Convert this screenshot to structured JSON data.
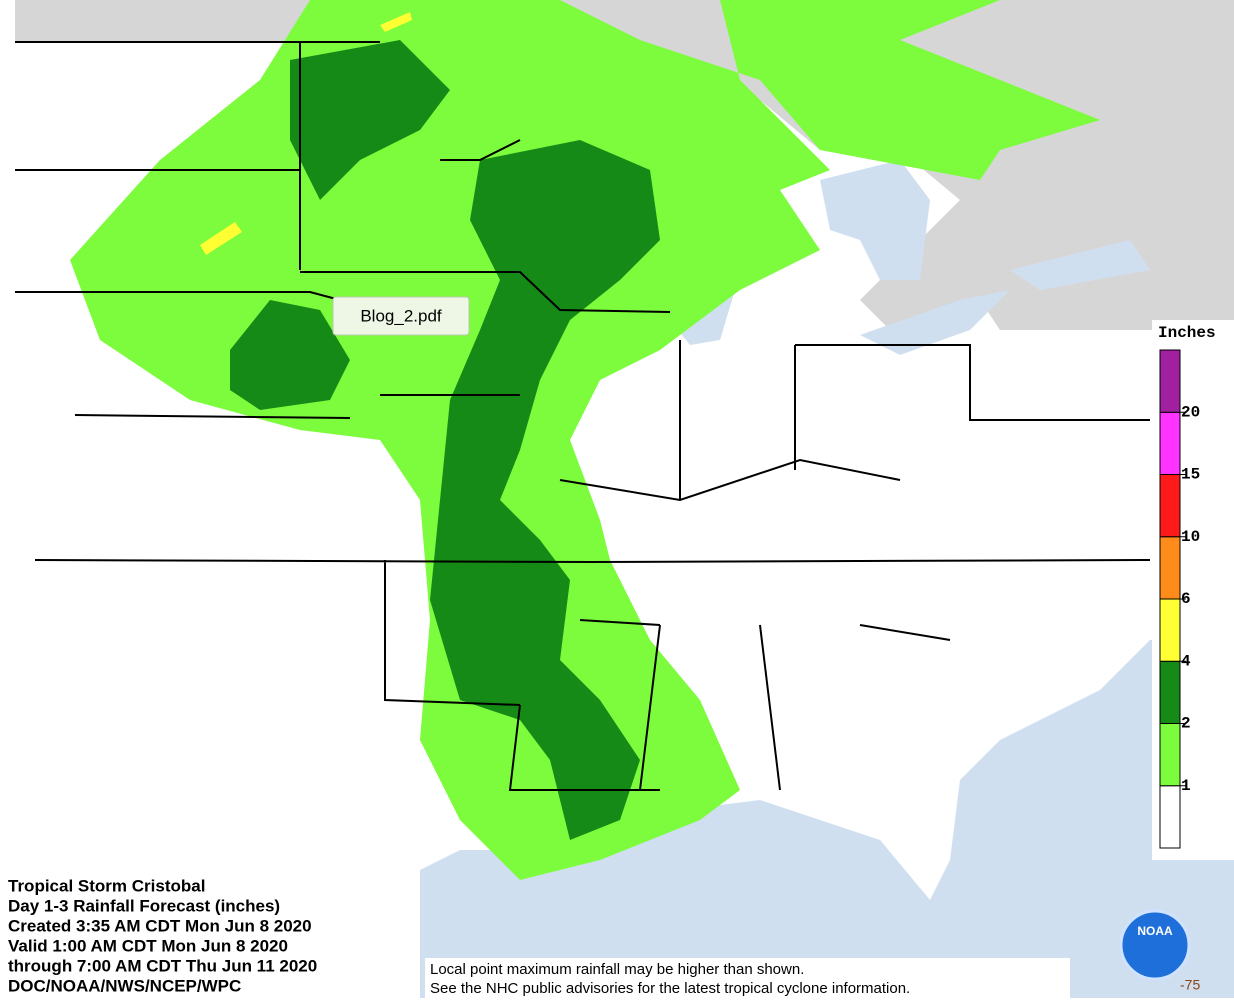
{
  "map": {
    "title_lines": [
      "Tropical Storm Cristobal",
      "Day 1-3 Rainfall Forecast (inches)",
      "Created 3:35 AM CDT Mon Jun 8 2020",
      "Valid 1:00 AM CDT Mon Jun 8 2020",
      "through 7:00 AM CDT Thu Jun 11 2020",
      "DOC/NOAA/NWS/NCEP/WPC"
    ],
    "tooltip": "Blog_2.pdf",
    "disclaimer_lines": [
      "Local point maximum rainfall may be higher than shown.",
      "See the NHC public advisories for the latest tropical cyclone information."
    ],
    "longitude_label": "-75",
    "logo_text": "NOAA",
    "legend": {
      "title": "Inches",
      "thresholds": [
        1,
        2,
        4,
        6,
        10,
        15,
        20
      ],
      "colors": [
        "#ffffff",
        "#7cfc3c",
        "#168a16",
        "#ffff33",
        "#ff8c1a",
        "#ff1a1a",
        "#ff33ff",
        "#a020a0"
      ]
    }
  }
}
